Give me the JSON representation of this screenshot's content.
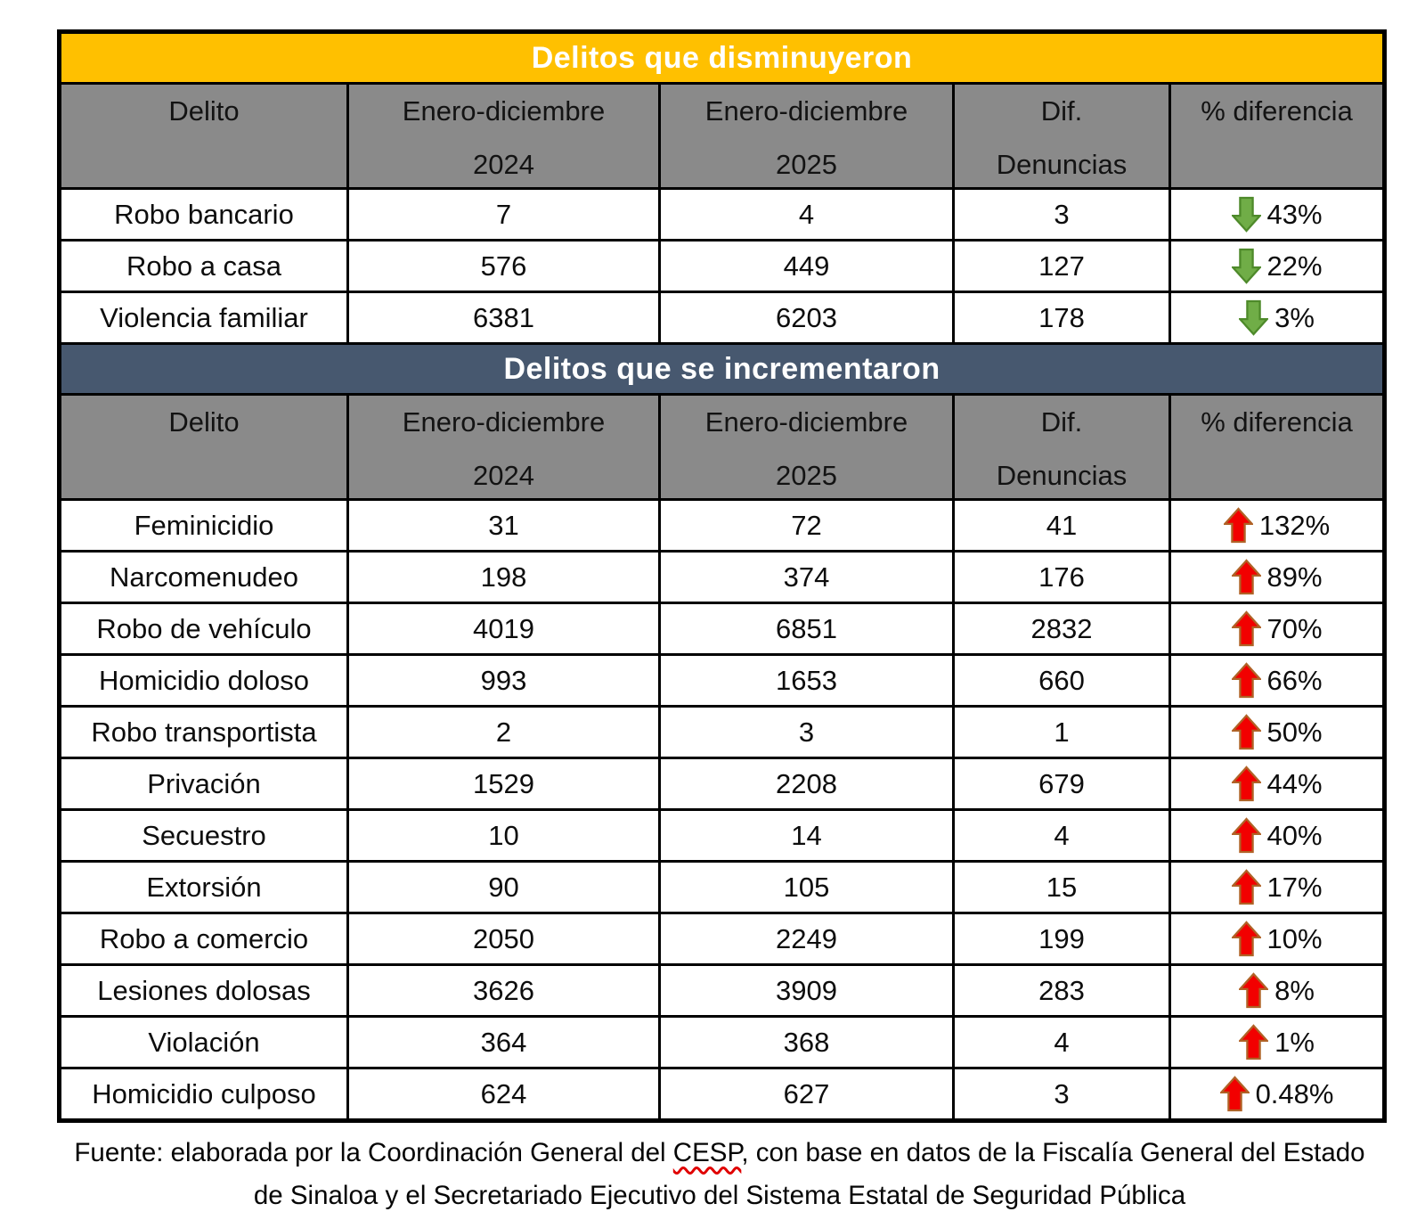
{
  "title_area": {
    "document_type": "crime-statistics-comparison-table"
  },
  "colors": {
    "decreased_header_bg": "#ffc000",
    "increased_header_bg": "#47586f",
    "column_header_bg": "#8a8a8a",
    "decrease_arrow_fill": "#70ad47",
    "decrease_arrow_stroke": "#4e8a2a",
    "increase_arrow_fill": "#f20000",
    "increase_arrow_stroke": "#b06226",
    "table_border": "#000000",
    "header_text": "#ffffff"
  },
  "columns": {
    "delito": "Delito",
    "y2024_line1": "Enero-diciembre",
    "y2024_line2": "2024",
    "y2025_line1": "Enero-diciembre",
    "y2025_line2": "2025",
    "dif_line1": "Dif.",
    "dif_line2": "Denuncias",
    "pct": "% diferencia"
  },
  "sections": [
    {
      "title": "Delitos que disminuyeron",
      "direction": "down",
      "rows": [
        {
          "delito": "Robo bancario",
          "y2024": "7",
          "y2025": "4",
          "dif": "3",
          "pct": "43%"
        },
        {
          "delito": "Robo a casa",
          "y2024": "576",
          "y2025": "449",
          "dif": "127",
          "pct": "22%"
        },
        {
          "delito": "Violencia familiar",
          "y2024": "6381",
          "y2025": "6203",
          "dif": "178",
          "pct": "3%"
        }
      ]
    },
    {
      "title": "Delitos que se incrementaron",
      "direction": "up",
      "rows": [
        {
          "delito": "Feminicidio",
          "y2024": "31",
          "y2025": "72",
          "dif": "41",
          "pct": "132%"
        },
        {
          "delito": "Narcomenudeo",
          "y2024": "198",
          "y2025": "374",
          "dif": "176",
          "pct": "89%"
        },
        {
          "delito": "Robo de vehículo",
          "y2024": "4019",
          "y2025": "6851",
          "dif": "2832",
          "pct": "70%"
        },
        {
          "delito": "Homicidio doloso",
          "y2024": "993",
          "y2025": "1653",
          "dif": "660",
          "pct": "66%"
        },
        {
          "delito": "Robo transportista",
          "y2024": "2",
          "y2025": "3",
          "dif": "1",
          "pct": "50%"
        },
        {
          "delito": "Privación",
          "y2024": "1529",
          "y2025": "2208",
          "dif": "679",
          "pct": "44%"
        },
        {
          "delito": "Secuestro",
          "y2024": "10",
          "y2025": "14",
          "dif": "4",
          "pct": "40%"
        },
        {
          "delito": "Extorsión",
          "y2024": "90",
          "y2025": "105",
          "dif": "15",
          "pct": "17%"
        },
        {
          "delito": "Robo a comercio",
          "y2024": "2050",
          "y2025": "2249",
          "dif": "199",
          "pct": "10%"
        },
        {
          "delito": "Lesiones dolosas",
          "y2024": "3626",
          "y2025": "3909",
          "dif": "283",
          "pct": "8%"
        },
        {
          "delito": "Violación",
          "y2024": "364",
          "y2025": "368",
          "dif": "4",
          "pct": "1%"
        },
        {
          "delito": "Homicidio culposo",
          "y2024": "624",
          "y2025": "627",
          "dif": "3",
          "pct": "0.48%"
        }
      ]
    }
  ],
  "footer": {
    "prefix": "Fuente: elaborada por la Coordinación General del ",
    "cesp": "CESP",
    "suffix": ", con base en datos de la Fiscalía General del Estado de Sinaloa y el Secretariado Ejecutivo del Sistema Estatal de Seguridad Pública"
  }
}
